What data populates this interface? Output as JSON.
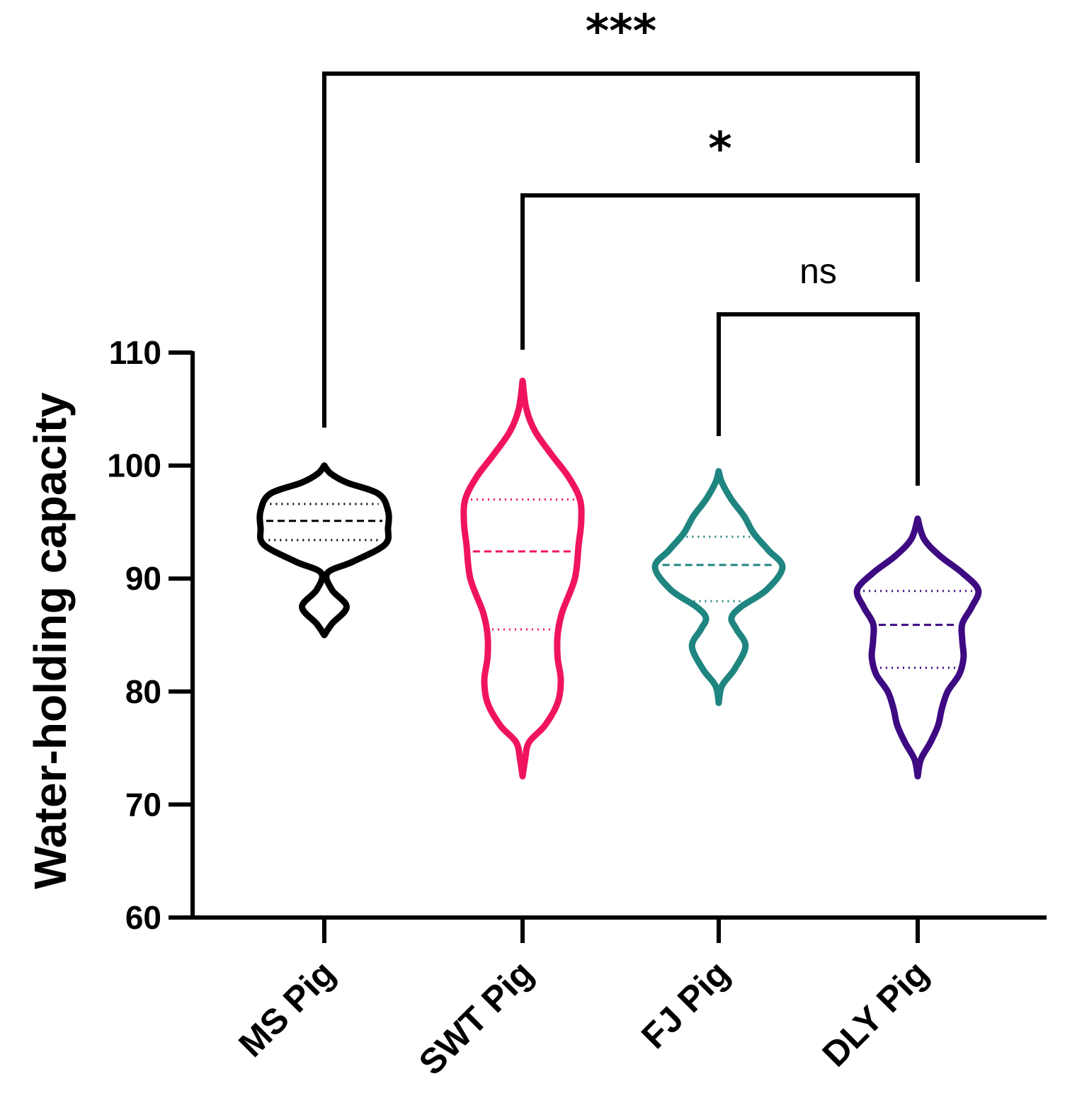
{
  "chart_data": {
    "type": "violin",
    "title": "",
    "xlabel": "",
    "ylabel": "Water-holding capacity",
    "ylim": [
      60,
      110
    ],
    "yticks": [
      60,
      70,
      80,
      90,
      100,
      110
    ],
    "categories": [
      "MS Pig",
      "SWT Pig",
      "FJ Pig",
      "DLY Pig"
    ],
    "grid": false,
    "legend": "none",
    "series": [
      {
        "color": "#000000",
        "min": 85,
        "max": 100,
        "q1": 93.4,
        "median": 95.1,
        "q3": 96.6,
        "density": [
          [
            85,
            0
          ],
          [
            86,
            0.12
          ],
          [
            87.5,
            0.35
          ],
          [
            89,
            0.12
          ],
          [
            90.5,
            0.05
          ],
          [
            91.5,
            0.45
          ],
          [
            93,
            0.95
          ],
          [
            94.5,
            1.0
          ],
          [
            96,
            1.0
          ],
          [
            97.5,
            0.85
          ],
          [
            98.5,
            0.35
          ],
          [
            99.3,
            0.1
          ],
          [
            100,
            0
          ]
        ]
      },
      {
        "color": "#f0145f",
        "min": 72.5,
        "max": 107.5,
        "q1": 85.5,
        "median": 92.4,
        "q3": 97.0,
        "density": [
          [
            72.5,
            0
          ],
          [
            74,
            0.04
          ],
          [
            75.5,
            0.1
          ],
          [
            77,
            0.35
          ],
          [
            79,
            0.55
          ],
          [
            81,
            0.6
          ],
          [
            83,
            0.55
          ],
          [
            85,
            0.55
          ],
          [
            87,
            0.62
          ],
          [
            90,
            0.82
          ],
          [
            93,
            0.88
          ],
          [
            95,
            0.92
          ],
          [
            97,
            0.9
          ],
          [
            99,
            0.72
          ],
          [
            101,
            0.45
          ],
          [
            103,
            0.2
          ],
          [
            105,
            0.06
          ],
          [
            107.5,
            0
          ]
        ]
      },
      {
        "color": "#1f8580",
        "min": 79,
        "max": 99.5,
        "q1": 88.0,
        "median": 91.2,
        "q3": 93.7,
        "density": [
          [
            79,
            0
          ],
          [
            80.5,
            0.05
          ],
          [
            82,
            0.25
          ],
          [
            84,
            0.42
          ],
          [
            85.5,
            0.28
          ],
          [
            86.5,
            0.2
          ],
          [
            87.5,
            0.35
          ],
          [
            89,
            0.75
          ],
          [
            91,
            1.0
          ],
          [
            92.5,
            0.78
          ],
          [
            94,
            0.55
          ],
          [
            95.5,
            0.4
          ],
          [
            97,
            0.2
          ],
          [
            98.5,
            0.05
          ],
          [
            99.5,
            0
          ]
        ]
      },
      {
        "color": "#3d0a82",
        "min": 72.5,
        "max": 95.3,
        "q1": 82.1,
        "median": 85.9,
        "q3": 88.9,
        "density": [
          [
            72.5,
            0
          ],
          [
            74,
            0.05
          ],
          [
            75.5,
            0.2
          ],
          [
            77,
            0.32
          ],
          [
            78.5,
            0.38
          ],
          [
            80,
            0.47
          ],
          [
            81.5,
            0.65
          ],
          [
            83,
            0.72
          ],
          [
            84.5,
            0.7
          ],
          [
            86,
            0.7
          ],
          [
            87.5,
            0.85
          ],
          [
            89,
            0.95
          ],
          [
            90.5,
            0.7
          ],
          [
            92,
            0.35
          ],
          [
            93.5,
            0.1
          ],
          [
            95.3,
            0
          ]
        ]
      }
    ],
    "comparisons": [
      {
        "from": "MS Pig",
        "to": "DLY Pig",
        "label": "***"
      },
      {
        "from": "SWT Pig",
        "to": "DLY Pig",
        "label": "*"
      },
      {
        "from": "FJ Pig",
        "to": "DLY Pig",
        "label": "ns"
      }
    ]
  }
}
